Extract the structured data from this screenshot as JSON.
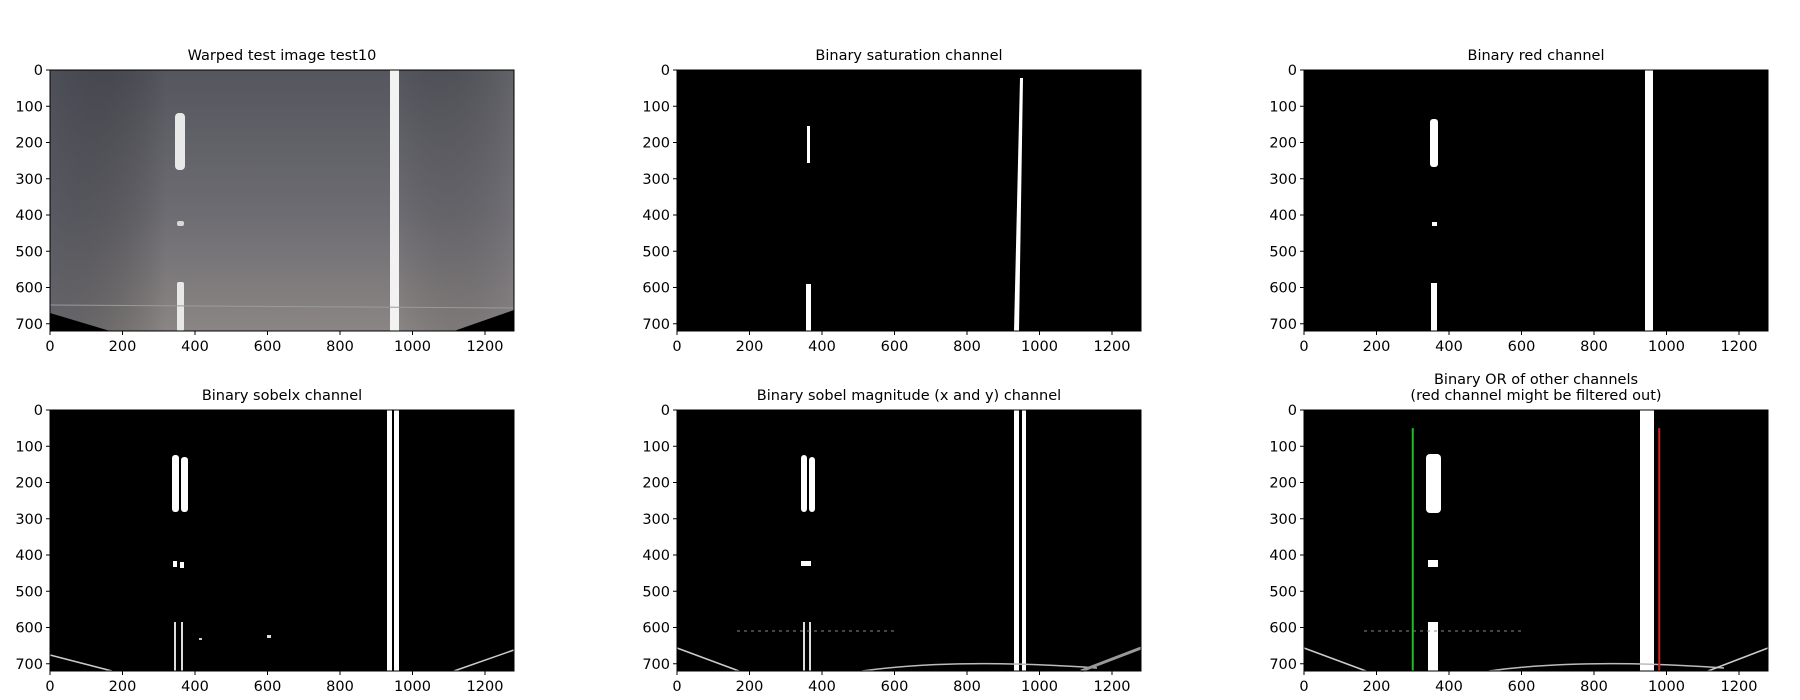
{
  "figure": {
    "panels": [
      {
        "id": "warped",
        "title_lines": [
          "Warped test image test10"
        ],
        "image_width": 1280,
        "image_height": 720,
        "x_ticks": [
          0,
          200,
          400,
          600,
          800,
          1000,
          1200
        ],
        "y_ticks": [
          0,
          100,
          200,
          300,
          400,
          500,
          600,
          700
        ],
        "x_tick_labels": [
          "0",
          "200",
          "400",
          "600",
          "800",
          "1000",
          "1200"
        ],
        "y_tick_labels": [
          "0",
          "100",
          "200",
          "300",
          "400",
          "500",
          "600",
          "700"
        ]
      },
      {
        "id": "saturation",
        "title_lines": [
          "Binary saturation channel"
        ],
        "image_width": 1280,
        "image_height": 720,
        "x_ticks": [
          0,
          200,
          400,
          600,
          800,
          1000,
          1200
        ],
        "y_ticks": [
          0,
          100,
          200,
          300,
          400,
          500,
          600,
          700
        ],
        "x_tick_labels": [
          "0",
          "200",
          "400",
          "600",
          "800",
          "1000",
          "1200"
        ],
        "y_tick_labels": [
          "0",
          "100",
          "200",
          "300",
          "400",
          "500",
          "600",
          "700"
        ]
      },
      {
        "id": "red",
        "title_lines": [
          "Binary red channel"
        ],
        "image_width": 1280,
        "image_height": 720,
        "x_ticks": [
          0,
          200,
          400,
          600,
          800,
          1000,
          1200
        ],
        "y_ticks": [
          0,
          100,
          200,
          300,
          400,
          500,
          600,
          700
        ],
        "x_tick_labels": [
          "0",
          "200",
          "400",
          "600",
          "800",
          "1000",
          "1200"
        ],
        "y_tick_labels": [
          "0",
          "100",
          "200",
          "300",
          "400",
          "500",
          "600",
          "700"
        ]
      },
      {
        "id": "sobelx",
        "title_lines": [
          "Binary sobelx channel"
        ],
        "image_width": 1280,
        "image_height": 720,
        "x_ticks": [
          0,
          200,
          400,
          600,
          800,
          1000,
          1200
        ],
        "y_ticks": [
          0,
          100,
          200,
          300,
          400,
          500,
          600,
          700
        ],
        "x_tick_labels": [
          "0",
          "200",
          "400",
          "600",
          "800",
          "1000",
          "1200"
        ],
        "y_tick_labels": [
          "0",
          "100",
          "200",
          "300",
          "400",
          "500",
          "600",
          "700"
        ]
      },
      {
        "id": "sobelmag",
        "title_lines": [
          "Binary sobel magnitude (x and y) channel"
        ],
        "image_width": 1280,
        "image_height": 720,
        "x_ticks": [
          0,
          200,
          400,
          600,
          800,
          1000,
          1200
        ],
        "y_ticks": [
          0,
          100,
          200,
          300,
          400,
          500,
          600,
          700
        ],
        "x_tick_labels": [
          "0",
          "200",
          "400",
          "600",
          "800",
          "1000",
          "1200"
        ],
        "y_tick_labels": [
          "0",
          "100",
          "200",
          "300",
          "400",
          "500",
          "600",
          "700"
        ]
      },
      {
        "id": "combined",
        "title_lines": [
          "Binary OR of other channels",
          "(red channel might be filtered out)"
        ],
        "image_width": 1280,
        "image_height": 720,
        "x_ticks": [
          0,
          200,
          400,
          600,
          800,
          1000,
          1200
        ],
        "y_ticks": [
          0,
          100,
          200,
          300,
          400,
          500,
          600,
          700
        ],
        "x_tick_labels": [
          "0",
          "200",
          "400",
          "600",
          "800",
          "1000",
          "1200"
        ],
        "y_tick_labels": [
          "0",
          "100",
          "200",
          "300",
          "400",
          "500",
          "600",
          "700"
        ],
        "markers": [
          {
            "name": "left-lane-marker",
            "x": 300,
            "y_start": 50,
            "y_end": 720,
            "color": "#22bb22"
          },
          {
            "name": "right-lane-marker",
            "x": 980,
            "y_start": 50,
            "y_end": 720,
            "color": "#cc2222"
          }
        ]
      }
    ]
  }
}
